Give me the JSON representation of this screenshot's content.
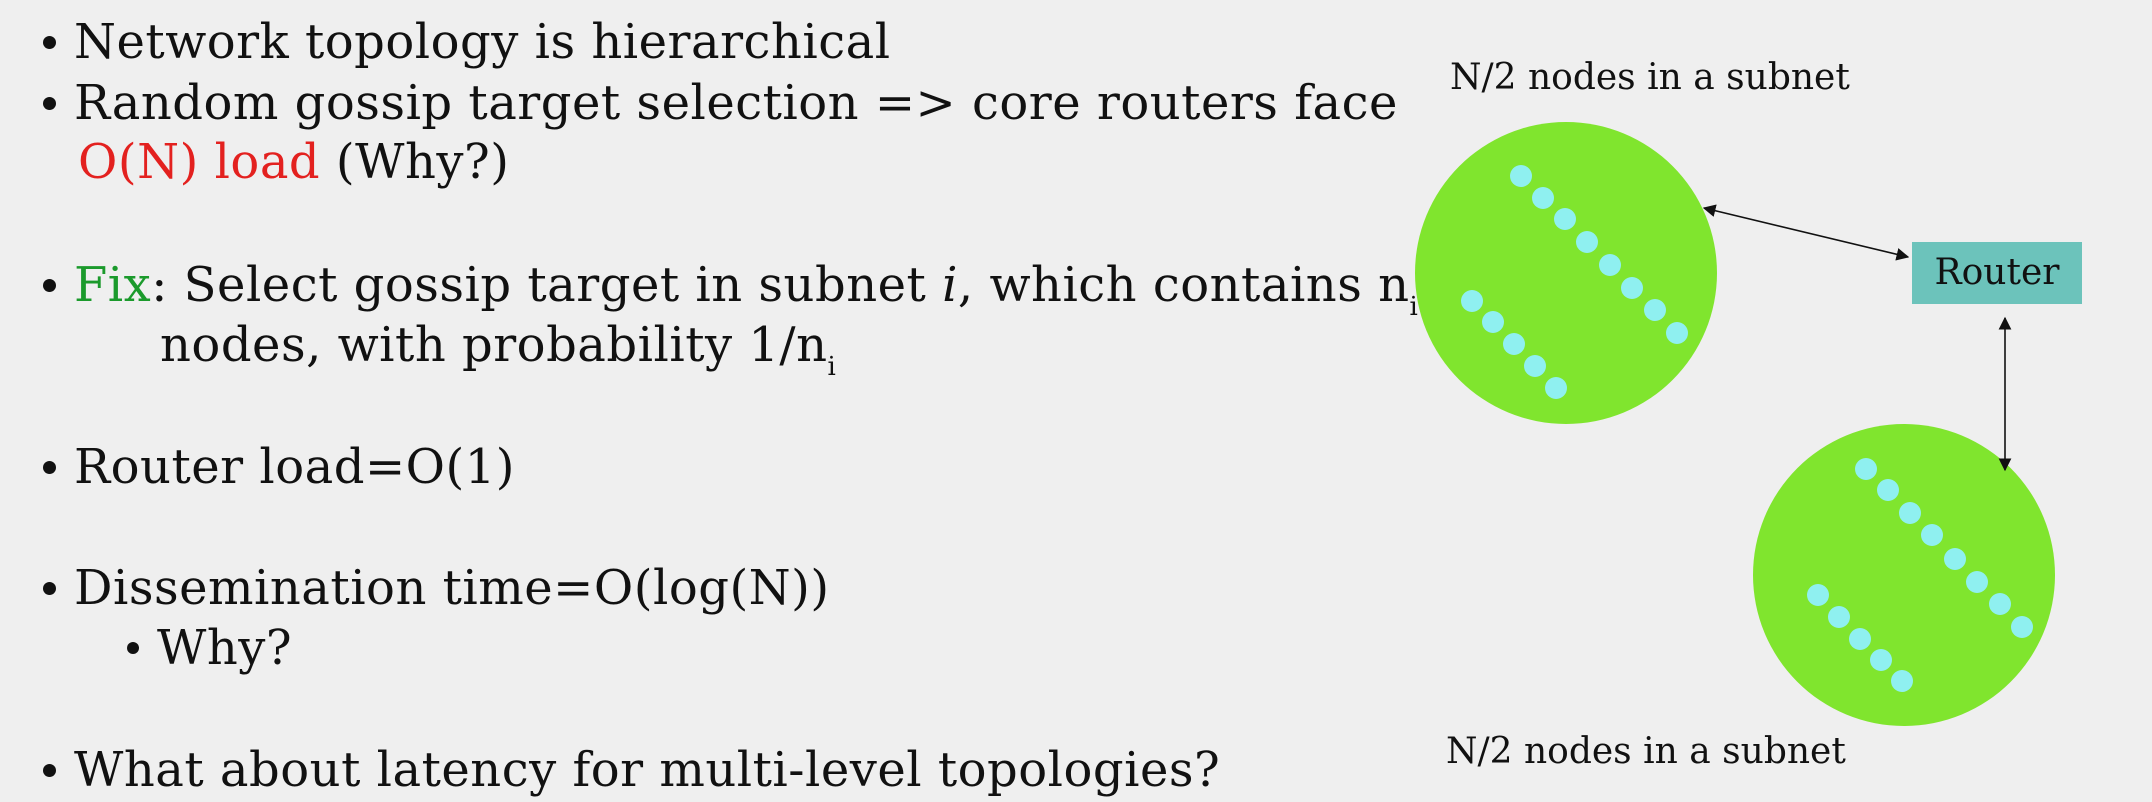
{
  "bullets": {
    "b1": "Network topology is hierarchical",
    "b2_line1": "Random gossip target selection => core routers face",
    "b2_red": "O(N) load",
    "b2_rest": " (Why?)",
    "b3_fix": "Fix",
    "b3_text": ": Select gossip target in subnet ",
    "b3_i": "i",
    "b3_text2": ", which contains n",
    "b3_sub": "i",
    "b3_line2": "nodes, with probability 1/n",
    "b3_sub2": "i",
    "b4": "Router load=O(1)",
    "b5": "Dissemination time=O(log(N))",
    "b5_sub": "Why?",
    "b6": "What about latency for multi-level topologies?"
  },
  "diagram": {
    "top_caption": "N/2 nodes in a subnet",
    "bottom_caption": "N/2 nodes in a subnet",
    "router_label": "Router",
    "subnet_color": "#80e52e",
    "node_color": "#8ff0f0",
    "router_color": "#6cc3bb"
  },
  "colors": {
    "highlight_red": "#e3211f",
    "highlight_green": "#1b9a2c"
  }
}
